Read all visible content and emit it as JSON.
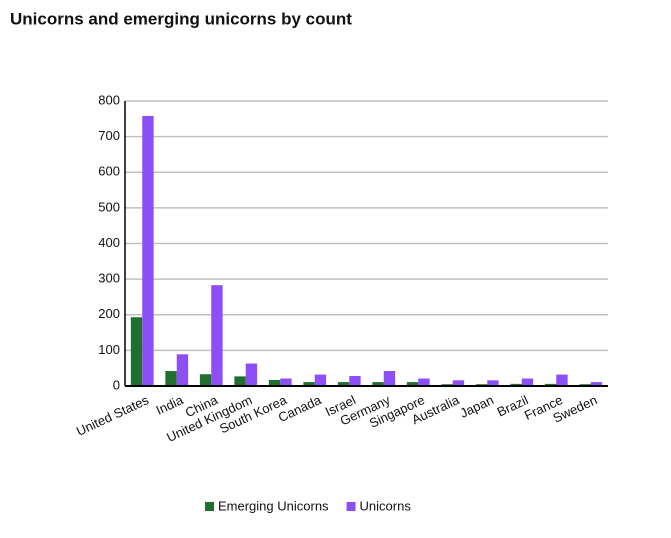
{
  "chart_data": {
    "type": "bar",
    "title": "Unicorns and emerging unicorns by count",
    "categories": [
      "United States",
      "India",
      "China",
      "United Kingdom",
      "South Korea",
      "Canada",
      "Israel",
      "Germany",
      "Singapore",
      "Australia",
      "Japan",
      "Brazil",
      "France",
      "Sweden"
    ],
    "series": [
      {
        "name": "Emerging Unicorns",
        "color": "#1f6f2f",
        "values": [
          193,
          42,
          33,
          27,
          17,
          11,
          11,
          11,
          11,
          5,
          5,
          6,
          6,
          5
        ]
      },
      {
        "name": "Unicorns",
        "color": "#8b4ff5",
        "values": [
          758,
          89,
          283,
          63,
          21,
          32,
          28,
          42,
          21,
          16,
          16,
          21,
          32,
          11
        ]
      }
    ],
    "ylim": [
      0,
      800
    ],
    "yticks": [
      0,
      100,
      200,
      300,
      400,
      500,
      600,
      700,
      800
    ],
    "grid": true,
    "legend": "bottom"
  }
}
